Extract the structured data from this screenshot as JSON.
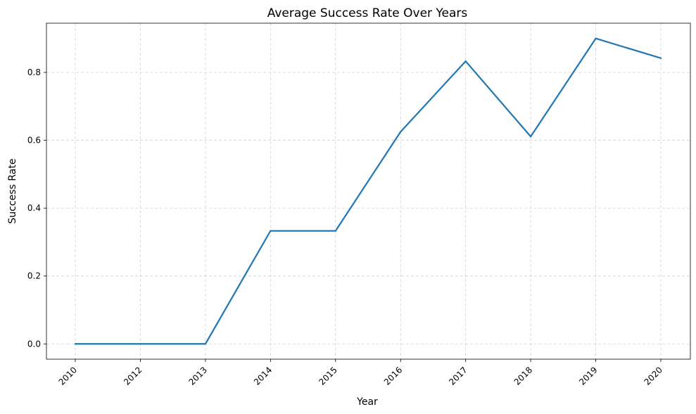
{
  "chart_data": {
    "type": "line",
    "title": "Average Success Rate Over Years",
    "xlabel": "Year",
    "ylabel": "Success Rate",
    "x": [
      2010,
      2012,
      2013,
      2014,
      2015,
      2016,
      2017,
      2018,
      2019,
      2020
    ],
    "x_tick_labels": [
      "2010",
      "2012",
      "2013",
      "2014",
      "2015",
      "2016",
      "2017",
      "2018",
      "2019",
      "2020"
    ],
    "series": [
      {
        "values": [
          0.0,
          0.0,
          0.0,
          0.333,
          0.333,
          0.625,
          0.833,
          0.611,
          0.9,
          0.842
        ],
        "color": "#1f77b4"
      }
    ],
    "y_ticks": [
      0.0,
      0.2,
      0.4,
      0.6,
      0.8
    ],
    "y_tick_labels": [
      "0.0",
      "0.2",
      "0.4",
      "0.6",
      "0.8"
    ],
    "ylim": [
      -0.045,
      0.945
    ],
    "x_axis_kind": "categorical",
    "x_tick_rotation_deg": 45,
    "grid": true,
    "grid_style": "dashed",
    "legend": false
  }
}
